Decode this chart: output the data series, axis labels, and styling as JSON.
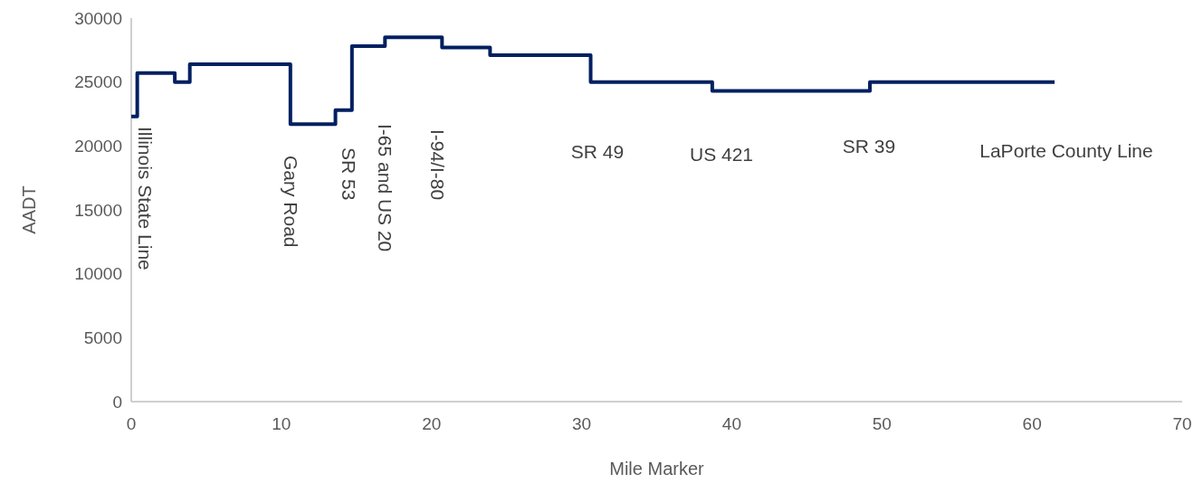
{
  "chart_data": {
    "type": "step",
    "xlabel": "Mile Marker",
    "ylabel": "AADT",
    "x": [
      0,
      0.4,
      2.9,
      3.9,
      10.6,
      13.6,
      14.7,
      16.9,
      20.7,
      23.9,
      30.6,
      38.7,
      49.2,
      61.5
    ],
    "series": [
      {
        "color": "#002060",
        "values": [
          22300,
          25700,
          25000,
          26400,
          21700,
          22800,
          27800,
          28500,
          27700,
          27100,
          25000,
          24300,
          25000,
          25000
        ]
      }
    ],
    "xlim": [
      0,
      70
    ],
    "xticks": [
      0,
      10,
      20,
      30,
      40,
      50,
      60,
      70
    ],
    "ylim": [
      0,
      30000
    ],
    "yticks": [
      0,
      5000,
      10000,
      15000,
      20000,
      25000,
      30000
    ],
    "grid": false,
    "annotations": [
      "Illinois State Line",
      "Gary Road",
      "SR 53",
      "I-65 and US 20",
      "I-94/I-80",
      "SR 49",
      "US 421",
      "SR 39",
      "LaPorte County Line"
    ]
  }
}
